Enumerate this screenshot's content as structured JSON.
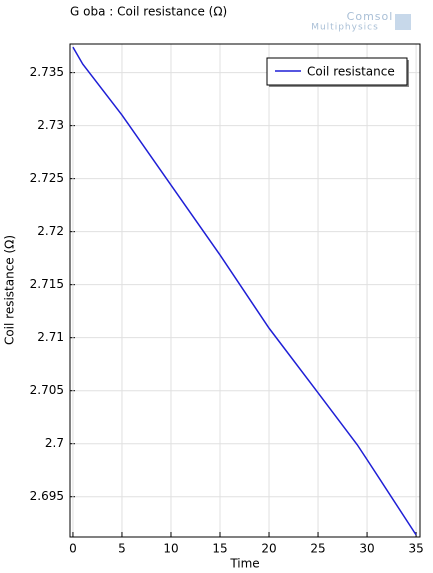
{
  "chart_data": {
    "type": "line",
    "title": "G oba : Coil resistance (Ω)",
    "logo": [
      "Comsol",
      "Multiphysics"
    ],
    "x_label": "Time",
    "y_label": "Coil resistance (Ω)",
    "x": [
      0,
      1,
      5,
      10,
      15,
      20,
      25,
      29,
      30,
      35
    ],
    "series": [
      {
        "name": "Coil resistance",
        "color": "#1f1fd6",
        "values": [
          2.7374,
          2.7358,
          2.731,
          2.7244,
          2.7178,
          2.7109,
          2.7048,
          2.6999,
          2.6985,
          2.6914
        ]
      }
    ],
    "xlim": [
      -0.3,
      35.4
    ],
    "ylim": [
      2.6912,
      2.7377
    ],
    "xticks": [
      0,
      5,
      10,
      15,
      20,
      25,
      30,
      35
    ],
    "yticks": [
      2.695,
      2.7,
      2.705,
      2.71,
      2.715,
      2.72,
      2.725,
      2.73,
      2.735
    ],
    "grid": true,
    "legend": "upper-right"
  }
}
